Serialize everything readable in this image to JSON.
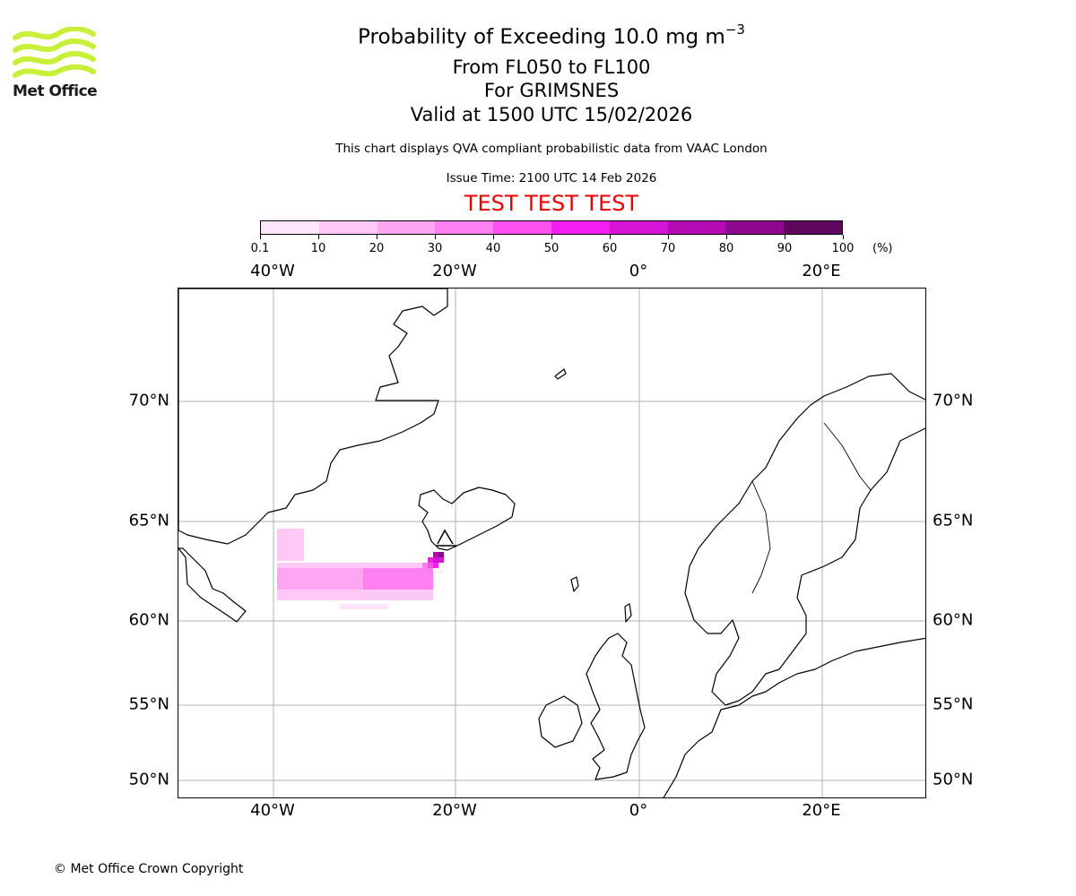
{
  "header": {
    "title_prefix": "Probability of Exceeding 10.0 mg m",
    "title_exponent": "−3",
    "flight_levels": "From FL050 to FL100",
    "volcano": "For GRIMSNES",
    "valid_time": "Valid at 1500 UTC 15/02/2026",
    "qva_note": "This chart displays QVA compliant probabilistic data from VAAC London",
    "issue_time": "Issue Time: 2100 UTC 14 Feb 2026",
    "test_banner": "TEST TEST TEST"
  },
  "logo": {
    "text": "Met Office",
    "color": "#c8ef3a"
  },
  "colorbar": {
    "unit": "(%)",
    "tick_labels": [
      "0.1",
      "10",
      "20",
      "30",
      "40",
      "50",
      "60",
      "70",
      "80",
      "90",
      "100"
    ],
    "colors": [
      "#ffe6fb",
      "#ffc8f7",
      "#ffa6f3",
      "#ff80f0",
      "#ff4ff1",
      "#f51ef2",
      "#d614d6",
      "#b40bb4",
      "#8e078e",
      "#5e055e"
    ]
  },
  "map": {
    "lon_labels": [
      "40°W",
      "20°W",
      "0°",
      "20°E"
    ],
    "lat_labels": [
      "70°N",
      "65°N",
      "60°N",
      "55°N",
      "50°N"
    ],
    "coastline_color": "#000000",
    "gridline_color": "#b0b0b0",
    "plume_color": "#ff80f0"
  },
  "footer": {
    "copyright": "© Met Office Crown Copyright"
  }
}
